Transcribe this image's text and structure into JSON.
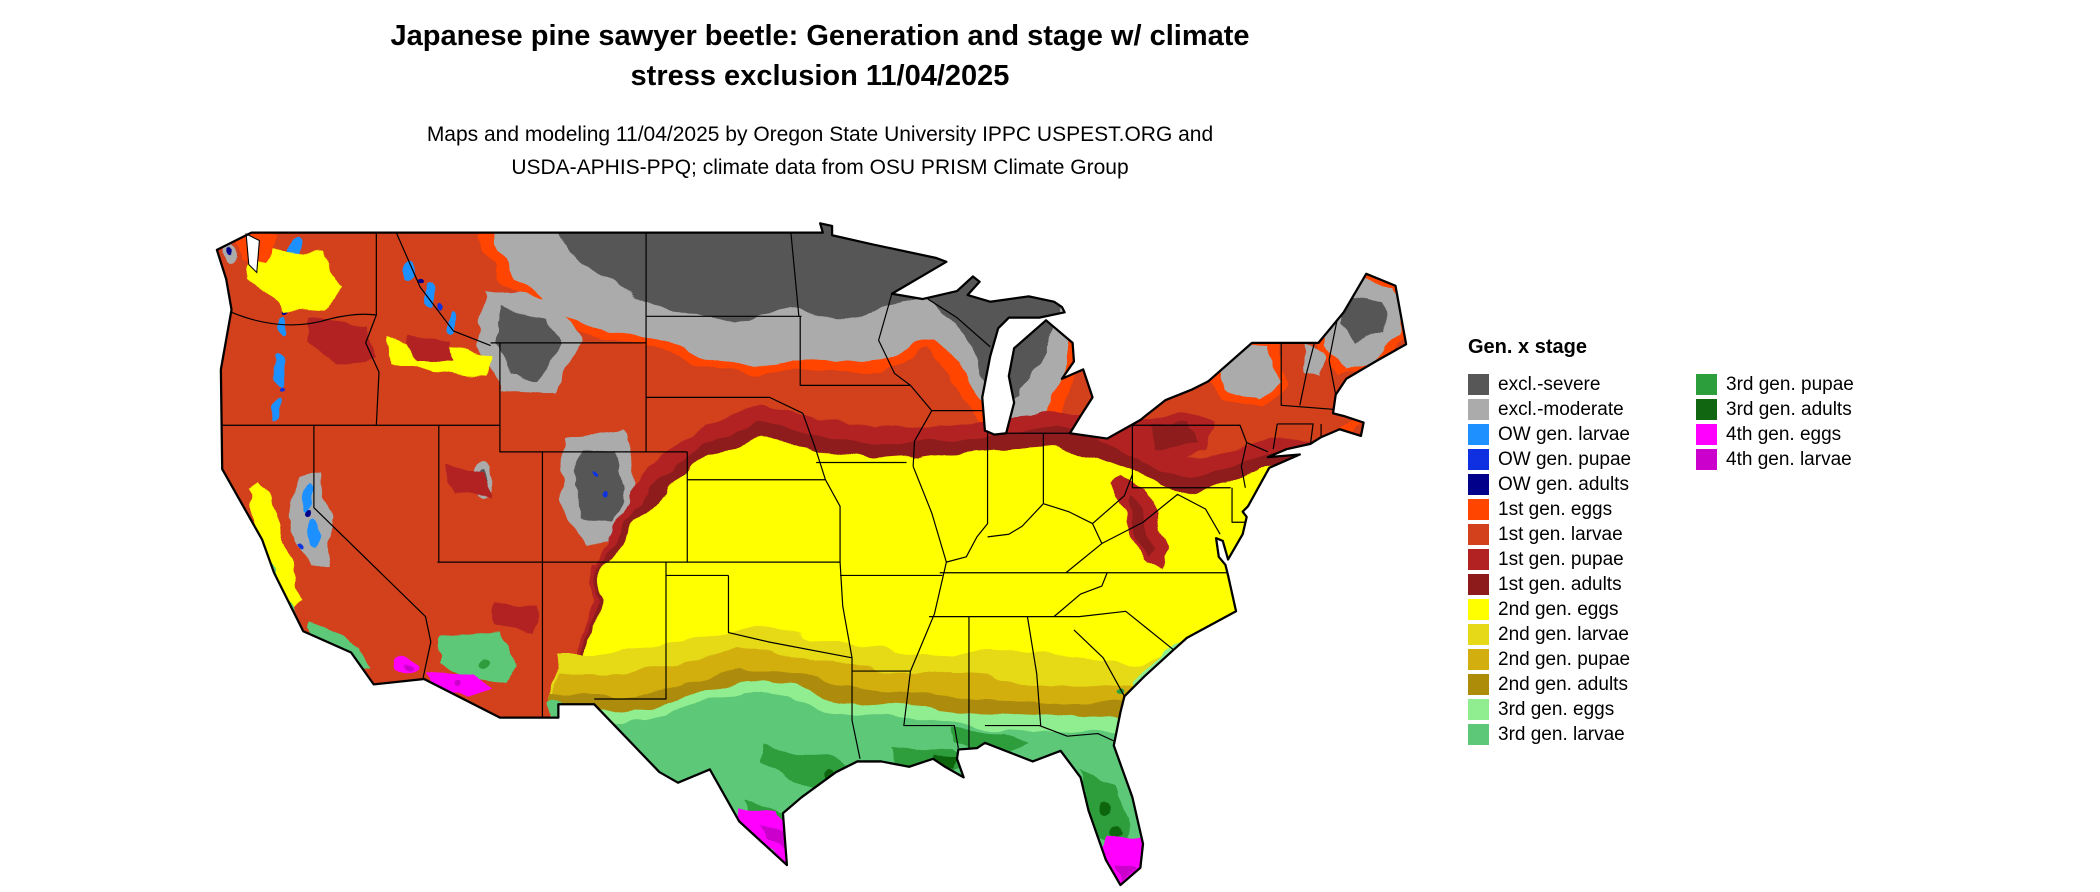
{
  "title": {
    "line1": "Japanese pine sawyer beetle: Generation and stage w/ climate",
    "line2": "stress exclusion 11/04/2025"
  },
  "subtitle": {
    "line1": "Maps and modeling 11/04/2025 by Oregon State University IPPC USPEST.ORG and",
    "line2": "USDA-APHIS-PPQ; climate data from OSU PRISM Climate Group"
  },
  "map": {
    "name": "us-generation-stage-choropleth",
    "description": "Conterminous United States map colored by beetle generation and life stage with state boundaries"
  },
  "legend": {
    "title": "Gen. x stage",
    "column1": [
      {
        "label": "excl.-severe",
        "color": "#575757"
      },
      {
        "label": "excl.-moderate",
        "color": "#ababab"
      },
      {
        "label": "OW gen. larvae",
        "color": "#1e90ff"
      },
      {
        "label": "OW gen. pupae",
        "color": "#0f30e0"
      },
      {
        "label": "OW gen. adults",
        "color": "#00008b"
      },
      {
        "label": "1st gen. eggs",
        "color": "#ff4500"
      },
      {
        "label": "1st gen. larvae",
        "color": "#d2401c"
      },
      {
        "label": "1st gen. pupae",
        "color": "#b22222"
      },
      {
        "label": "1st gen. adults",
        "color": "#8e1b1b"
      },
      {
        "label": "2nd gen. eggs",
        "color": "#ffff00"
      },
      {
        "label": "2nd gen. larvae",
        "color": "#e6da18"
      },
      {
        "label": "2nd gen. pupae",
        "color": "#d2af0f"
      },
      {
        "label": "2nd gen. adults",
        "color": "#ad8c0a"
      },
      {
        "label": "3rd gen. eggs",
        "color": "#90ee90"
      },
      {
        "label": "3rd gen. larvae",
        "color": "#5cc878"
      }
    ],
    "column2": [
      {
        "label": "3rd gen. pupae",
        "color": "#2d9e3c"
      },
      {
        "label": "3rd gen. adults",
        "color": "#116611"
      },
      {
        "label": "4th gen. eggs",
        "color": "#ff00ff"
      },
      {
        "label": "4th gen. larvae",
        "color": "#cc00cc"
      }
    ]
  }
}
